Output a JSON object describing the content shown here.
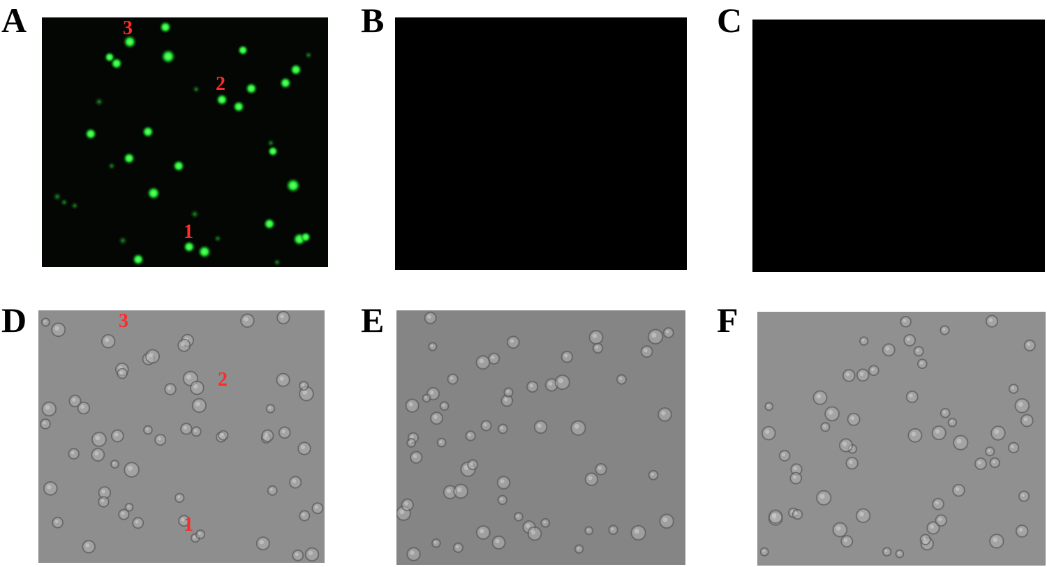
{
  "figure": {
    "panels": [
      {
        "id": "A",
        "letter": "A",
        "kind": "fluorescence",
        "cell_labels": [
          "1",
          "2",
          "3"
        ]
      },
      {
        "id": "B",
        "letter": "B",
        "kind": "dark"
      },
      {
        "id": "C",
        "letter": "C",
        "kind": "dark"
      },
      {
        "id": "D",
        "letter": "D",
        "kind": "brightfield",
        "cell_labels": [
          "1",
          "2",
          "3"
        ]
      },
      {
        "id": "E",
        "letter": "E",
        "kind": "brightfield"
      },
      {
        "id": "F",
        "letter": "F",
        "kind": "brightfield"
      }
    ],
    "colors": {
      "fluorescent_cell": "#33ff44",
      "label_red": "#ff2a2a",
      "brightfield_bg": "#8e8e8e",
      "fluor_bg": "#030603"
    }
  }
}
